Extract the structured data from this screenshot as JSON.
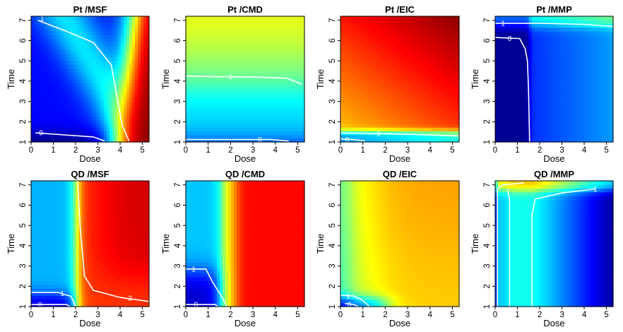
{
  "chart_data": [
    {
      "type": "heatmap",
      "title": "Pt /MSF",
      "xlabel": "Dose",
      "ylabel": "Time",
      "xlim": [
        0,
        5.3
      ],
      "ylim": [
        1,
        7.2
      ],
      "xticks": [
        "0",
        "1",
        "2",
        "3",
        "4",
        "5"
      ],
      "yticks": [
        "1",
        "2",
        "3",
        "4",
        "5",
        "6",
        "7"
      ],
      "field": "pt_msf",
      "contours": [
        {
          "label": "0",
          "points": [
            [
              0.2,
              1.45
            ],
            [
              1.5,
              1.35
            ],
            [
              2.8,
              1.25
            ],
            [
              3.3,
              1.05
            ]
          ],
          "label_at": [
            0.45,
            1.45
          ]
        },
        {
          "label": "1",
          "points": [
            [
              0.3,
              7.0
            ],
            [
              1.5,
              6.5
            ],
            [
              2.8,
              5.9
            ],
            [
              3.6,
              4.8
            ],
            [
              3.9,
              3.0
            ],
            [
              4.1,
              1.8
            ],
            [
              4.4,
              1.05
            ]
          ],
          "label_at": [
            0.5,
            7.1
          ]
        }
      ]
    },
    {
      "type": "heatmap",
      "title": "Pt /CMD",
      "xlabel": "Dose",
      "ylabel": "Time",
      "xlim": [
        0,
        5.3
      ],
      "ylim": [
        1,
        7.2
      ],
      "xticks": [
        "0",
        "1",
        "2",
        "3",
        "4",
        "5"
      ],
      "yticks": [
        "1",
        "2",
        "3",
        "4",
        "5",
        "6",
        "7"
      ],
      "field": "pt_cmd",
      "contours": [
        {
          "label": "1",
          "points": [
            [
              0.0,
              4.25
            ],
            [
              1.5,
              4.22
            ],
            [
              3.0,
              4.2
            ],
            [
              4.5,
              4.15
            ],
            [
              5.2,
              3.85
            ]
          ],
          "label_at": [
            2.0,
            4.22
          ]
        },
        {
          "label": "0",
          "points": [
            [
              0.0,
              1.12
            ],
            [
              2.0,
              1.12
            ],
            [
              3.8,
              1.12
            ],
            [
              4.6,
              1.05
            ]
          ],
          "label_at": [
            3.3,
            1.12
          ]
        }
      ]
    },
    {
      "type": "heatmap",
      "title": "Pt /EIC",
      "xlabel": "Dose",
      "ylabel": "Time",
      "xlim": [
        0,
        5.3
      ],
      "ylim": [
        1,
        7.2
      ],
      "xticks": [
        "0",
        "1",
        "2",
        "3",
        "4",
        "5"
      ],
      "yticks": [
        "1",
        "2",
        "3",
        "4",
        "5",
        "6",
        "7"
      ],
      "field": "pt_eic",
      "contours": [
        {
          "label": "1",
          "points": [
            [
              0.0,
              1.45
            ],
            [
              1.5,
              1.42
            ],
            [
              3.0,
              1.38
            ],
            [
              5.3,
              1.3
            ]
          ],
          "label_at": [
            1.7,
            1.42
          ]
        },
        {
          "label": "0",
          "points": [
            [
              0.0,
              1.15
            ],
            [
              0.6,
              1.12
            ],
            [
              1.1,
              1.05
            ]
          ],
          "label_at": [
            0.3,
            1.12
          ]
        }
      ]
    },
    {
      "type": "heatmap",
      "title": "Pt /MMP",
      "xlabel": "Dose",
      "ylabel": "Time",
      "xlim": [
        0,
        5.3
      ],
      "ylim": [
        1,
        7.2
      ],
      "xticks": [
        "0",
        "1",
        "2",
        "3",
        "4",
        "5"
      ],
      "yticks": [
        "1",
        "2",
        "3",
        "4",
        "5",
        "6",
        "7"
      ],
      "field": "pt_mmp",
      "contours": [
        {
          "label": "0",
          "points": [
            [
              0.0,
              6.15
            ],
            [
              1.1,
              6.1
            ],
            [
              1.35,
              5.6
            ],
            [
              1.45,
              5.0
            ],
            [
              1.5,
              3.5
            ],
            [
              1.55,
              1.0
            ]
          ],
          "label_at": [
            0.65,
            6.1
          ]
        },
        {
          "label": "1",
          "points": [
            [
              0.0,
              6.85
            ],
            [
              2.0,
              6.85
            ],
            [
              4.0,
              6.8
            ],
            [
              5.3,
              6.7
            ]
          ],
          "label_at": [
            0.35,
            6.85
          ]
        }
      ]
    },
    {
      "type": "heatmap",
      "title": "QD /MSF",
      "xlabel": "Dose",
      "ylabel": "Time",
      "xlim": [
        0,
        5.3
      ],
      "ylim": [
        1,
        7.2
      ],
      "xticks": [
        "0",
        "1",
        "2",
        "3",
        "4",
        "5"
      ],
      "yticks": [
        "1",
        "2",
        "3",
        "4",
        "5",
        "6",
        "7"
      ],
      "field": "qd_msf",
      "contours": [
        {
          "label": "0",
          "points": [
            [
              0.0,
              1.1
            ],
            [
              1.6,
              1.1
            ],
            [
              1.75,
              1.0
            ]
          ],
          "label_at": [
            0.4,
            1.1
          ]
        },
        {
          "label": "1",
          "points": [
            [
              0.0,
              1.7
            ],
            [
              1.2,
              1.7
            ],
            [
              1.8,
              1.5
            ],
            [
              2.0,
              1.0
            ]
          ],
          "label_at": [
            1.4,
            1.65
          ]
        },
        {
          "label": "2",
          "points": [
            [
              2.1,
              7.2
            ],
            [
              2.2,
              5.0
            ],
            [
              2.4,
              2.5
            ],
            [
              2.8,
              1.8
            ],
            [
              4.0,
              1.45
            ],
            [
              5.3,
              1.25
            ]
          ],
          "label_at": [
            4.45,
            1.42
          ]
        }
      ]
    },
    {
      "type": "heatmap",
      "title": "QD /CMD",
      "xlabel": "Dose",
      "ylabel": "Time",
      "xlim": [
        0,
        5.3
      ],
      "ylim": [
        1,
        7.2
      ],
      "xticks": [
        "0",
        "1",
        "2",
        "3",
        "4",
        "5"
      ],
      "yticks": [
        "1",
        "2",
        "3",
        "4",
        "5",
        "6",
        "7"
      ],
      "field": "qd_cmd",
      "contours": [
        {
          "label": "1",
          "points": [
            [
              0.0,
              2.85
            ],
            [
              0.9,
              2.85
            ],
            [
              1.2,
              2.2
            ],
            [
              1.6,
              1.5
            ],
            [
              1.85,
              1.0
            ]
          ],
          "label_at": [
            0.35,
            2.85
          ]
        },
        {
          "label": "0",
          "points": [
            [
              0.0,
              1.1
            ],
            [
              1.3,
              1.1
            ],
            [
              1.45,
              1.0
            ]
          ],
          "label_at": [
            0.45,
            1.1
          ]
        }
      ]
    },
    {
      "type": "heatmap",
      "title": "QD /EIC",
      "xlabel": "Dose",
      "ylabel": "Time",
      "xlim": [
        0,
        5.3
      ],
      "ylim": [
        1,
        7.2
      ],
      "xticks": [
        "0",
        "1",
        "2",
        "3",
        "4",
        "5"
      ],
      "yticks": [
        "1",
        "2",
        "3",
        "4",
        "5",
        "6",
        "7"
      ],
      "field": "qd_eic",
      "contours": [
        {
          "label": "1",
          "points": [
            [
              0.0,
              1.55
            ],
            [
              0.6,
              1.52
            ],
            [
              1.0,
              1.3
            ],
            [
              1.3,
              1.0
            ]
          ],
          "label_at": [
            0.35,
            1.52
          ]
        },
        {
          "label": "0",
          "points": [
            [
              0.2,
              1.15
            ],
            [
              0.6,
              1.1
            ],
            [
              0.8,
              1.0
            ]
          ],
          "label_at": [
            0.4,
            1.1
          ]
        }
      ]
    },
    {
      "type": "heatmap",
      "title": "QD /MMP",
      "xlabel": "Dose",
      "ylabel": "Time",
      "xlim": [
        0,
        5.3
      ],
      "ylim": [
        1,
        7.2
      ],
      "xticks": [
        "0",
        "1",
        "2",
        "3",
        "4",
        "5"
      ],
      "yticks": [
        "1",
        "2",
        "3",
        "4",
        "5",
        "6",
        "7"
      ],
      "field": "qd_mmp",
      "contours": [
        {
          "label": "1",
          "points": [
            [
              1.65,
              1.0
            ],
            [
              1.65,
              5.5
            ],
            [
              1.8,
              6.3
            ],
            [
              3.0,
              6.6
            ],
            [
              4.5,
              6.8
            ]
          ],
          "label_at": [
            4.5,
            6.8
          ]
        },
        {
          "label": "",
          "points": [
            [
              0.65,
              1.0
            ],
            [
              0.65,
              6.3
            ],
            [
              0.55,
              6.8
            ]
          ],
          "label_at": null
        },
        {
          "label": "",
          "points": [
            [
              0.1,
              1.0
            ],
            [
              0.1,
              6.8
            ],
            [
              0.35,
              7.0
            ],
            [
              1.3,
              7.1
            ]
          ],
          "label_at": null
        }
      ]
    }
  ]
}
